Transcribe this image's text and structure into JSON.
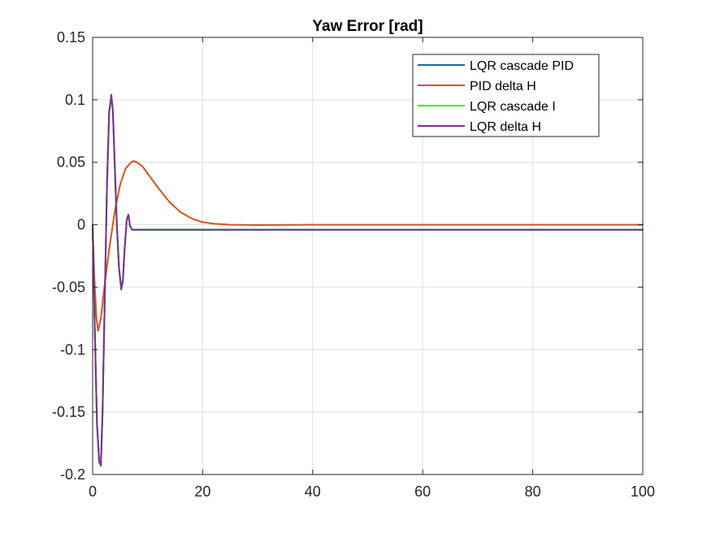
{
  "chart_data": {
    "type": "line",
    "title": "Yaw Error [rad]",
    "xlabel": "",
    "ylabel": "",
    "xlim": [
      0,
      100
    ],
    "ylim": [
      -0.2,
      0.15
    ],
    "grid": true,
    "legend_position": "top-right",
    "xticks": [
      0,
      20,
      40,
      60,
      80,
      100
    ],
    "xtick_labels": [
      "0",
      "20",
      "40",
      "60",
      "80",
      "100"
    ],
    "yticks": [
      -0.2,
      -0.15,
      -0.1,
      -0.05,
      0,
      0.05,
      0.1,
      0.15
    ],
    "ytick_labels": [
      "-0.2",
      "-0.15",
      "-0.1",
      "-0.05",
      "0",
      "0.05",
      "0.1",
      "0.15"
    ],
    "series": [
      {
        "name": "LQR cascade PID",
        "color": "#0072BD",
        "x": [
          0,
          0.4,
          0.8,
          1.2,
          1.5,
          1.8,
          2.2,
          2.6,
          3.0,
          3.4,
          3.7,
          4.0,
          4.4,
          4.8,
          5.2,
          5.5,
          5.8,
          6.2,
          6.5,
          6.8,
          7.2,
          8,
          10,
          20,
          40,
          60,
          80,
          100
        ],
        "y": [
          0,
          -0.085,
          -0.16,
          -0.19,
          -0.19,
          -0.15,
          -0.06,
          0.03,
          0.09,
          0.103,
          0.09,
          0.05,
          0.0,
          -0.035,
          -0.05,
          -0.045,
          -0.02,
          0.004,
          0.008,
          -0.001,
          -0.004,
          -0.004,
          -0.004,
          -0.004,
          -0.004,
          -0.004,
          -0.004,
          -0.004
        ]
      },
      {
        "name": "PID delta H",
        "color": "#D95319",
        "x": [
          0,
          0.3,
          0.7,
          1.0,
          1.5,
          2,
          3,
          4,
          5,
          6,
          7,
          7.5,
          8,
          9,
          10,
          12,
          14,
          16,
          18,
          20,
          22,
          25,
          30,
          40,
          60,
          80,
          100
        ],
        "y": [
          0,
          -0.04,
          -0.075,
          -0.085,
          -0.075,
          -0.055,
          -0.02,
          0.01,
          0.032,
          0.045,
          0.05,
          0.051,
          0.05,
          0.047,
          0.041,
          0.029,
          0.018,
          0.01,
          0.005,
          0.002,
          0.0008,
          0.0,
          -0.0003,
          0.0,
          0.0,
          0.0,
          0.0
        ]
      },
      {
        "name": "LQR cascade I",
        "color": "#00FF00",
        "x": [
          0,
          0.4,
          0.8,
          1.2,
          1.5,
          1.8,
          2.2,
          2.6,
          3.0,
          3.4,
          3.7,
          4.0,
          4.4,
          4.8,
          5.2,
          5.5,
          5.8,
          6.2,
          6.5,
          6.8,
          7.2,
          8,
          10,
          20,
          40,
          60,
          80,
          100
        ],
        "y": [
          0,
          -0.085,
          -0.16,
          -0.19,
          -0.192,
          -0.15,
          -0.06,
          0.03,
          0.09,
          0.104,
          0.09,
          0.05,
          0.0,
          -0.035,
          -0.051,
          -0.045,
          -0.02,
          0.004,
          0.008,
          -0.001,
          -0.004,
          -0.004,
          -0.004,
          -0.004,
          -0.004,
          -0.004,
          -0.004,
          -0.004
        ]
      },
      {
        "name": "LQR delta H",
        "color": "#7E2F8E",
        "x": [
          0,
          0.4,
          0.8,
          1.2,
          1.5,
          1.8,
          2.2,
          2.6,
          3.0,
          3.4,
          3.7,
          4.0,
          4.4,
          4.8,
          5.2,
          5.5,
          5.8,
          6.2,
          6.5,
          6.8,
          7.2,
          8,
          10,
          20,
          40,
          60,
          80,
          100
        ],
        "y": [
          0,
          -0.085,
          -0.16,
          -0.19,
          -0.193,
          -0.15,
          -0.06,
          0.03,
          0.09,
          0.104,
          0.09,
          0.05,
          0.0,
          -0.035,
          -0.052,
          -0.045,
          -0.02,
          0.004,
          0.008,
          -0.001,
          -0.004,
          -0.004,
          -0.004,
          -0.004,
          -0.004,
          -0.004,
          -0.004,
          -0.004
        ]
      }
    ]
  }
}
